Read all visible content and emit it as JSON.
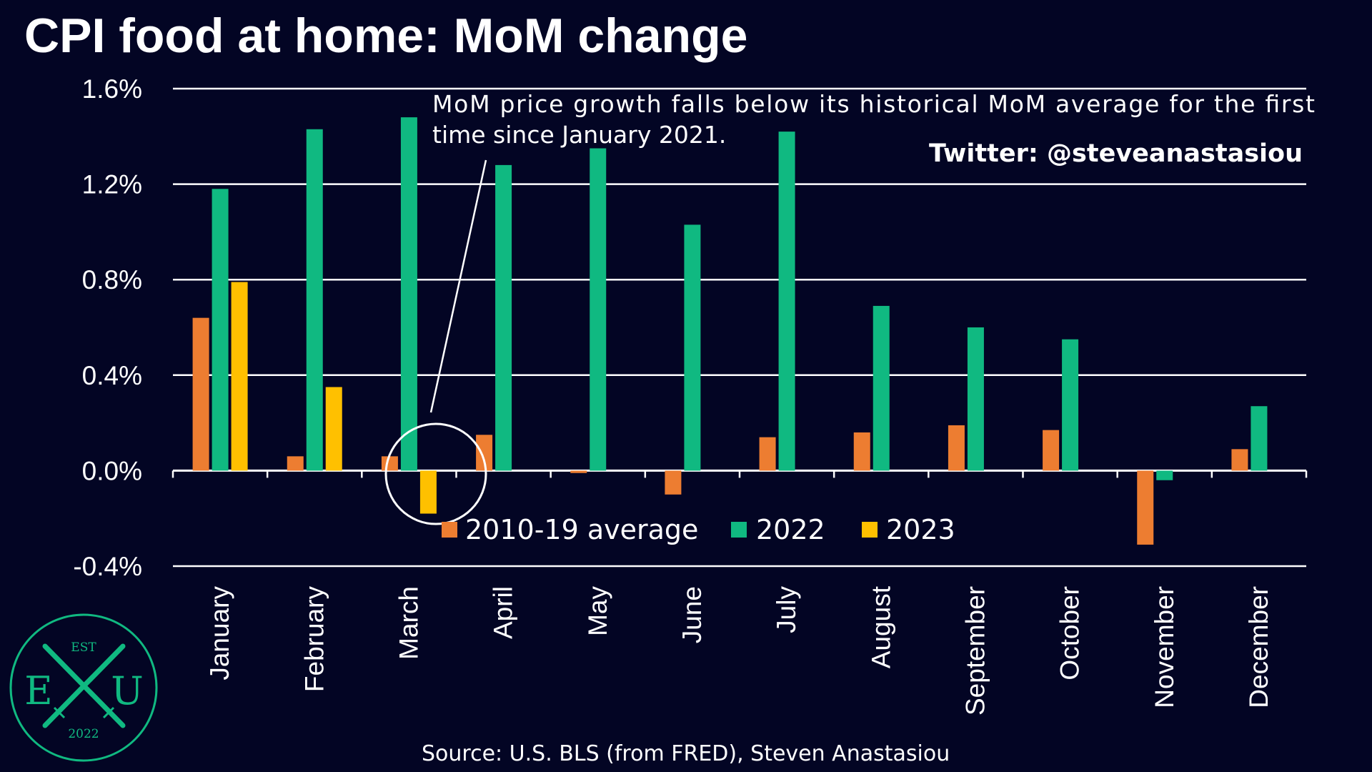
{
  "colors": {
    "background": "#030524",
    "avg_2010_19": "#ED7D31",
    "y2022": "#10B981",
    "y2023": "#FFC000",
    "grid": "#FFFFFF",
    "text": "#FFFFFF",
    "logo": "#10B981"
  },
  "title": "CPI food at home: MoM change",
  "annotation": {
    "text_line1": "MoM price growth falls below its historical MoM average for the first",
    "text_line2": "time since January 2021."
  },
  "twitter": "Twitter: @steveanastasiou",
  "source": "Source: U.S. BLS (from FRED), Steven Anastasiou",
  "logo": {
    "est": "EST",
    "left": "E",
    "right": "U",
    "year": "2022",
    "icon": "crossed-swords-icon"
  },
  "chart_data": {
    "type": "bar",
    "categories": [
      "January",
      "February",
      "March",
      "April",
      "May",
      "June",
      "July",
      "August",
      "September",
      "October",
      "November",
      "December"
    ],
    "series": [
      {
        "name": "2010-19 average",
        "values": [
          0.64,
          0.06,
          0.06,
          0.15,
          -0.01,
          -0.1,
          0.14,
          0.16,
          0.19,
          0.17,
          -0.31,
          0.09
        ]
      },
      {
        "name": "2022",
        "values": [
          1.18,
          1.43,
          1.48,
          1.28,
          1.35,
          1.03,
          1.42,
          0.69,
          0.6,
          0.55,
          -0.04,
          0.27
        ]
      },
      {
        "name": "2023",
        "values": [
          0.79,
          0.35,
          -0.18,
          null,
          null,
          null,
          null,
          null,
          null,
          null,
          null,
          null
        ]
      }
    ],
    "ylim": [
      -0.4,
      1.6
    ],
    "yticks": [
      -0.4,
      0.0,
      0.4,
      0.8,
      1.2,
      1.6
    ],
    "ytick_labels": [
      "-0.4%",
      "0.0%",
      "0.4%",
      "0.8%",
      "1.2%",
      "1.6%"
    ],
    "grid": true,
    "legend_position": "bottom-center",
    "highlight": {
      "category": "March",
      "shape": "circle"
    }
  }
}
